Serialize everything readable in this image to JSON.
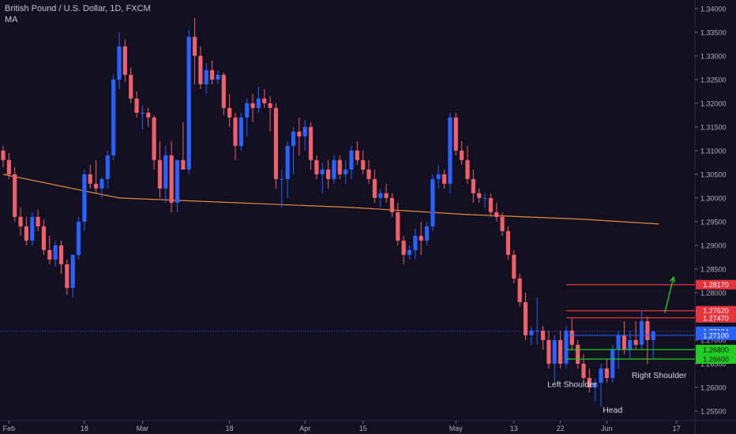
{
  "chart_data": {
    "type": "candlestick",
    "title": "British Pound / U.S. Dollar, 1D, FXCM",
    "indicator_label": "MA",
    "ylim": [
      1.253,
      1.3418
    ],
    "y_ticks": [
      "1.34000",
      "1.33500",
      "1.33000",
      "1.32500",
      "1.32000",
      "1.31500",
      "1.31000",
      "1.30500",
      "1.30000",
      "1.29500",
      "1.29000",
      "1.28500",
      "1.28000",
      "1.27500",
      "1.27000",
      "1.26500",
      "1.26000",
      "1.25500"
    ],
    "x_ticks": [
      {
        "label": "Feb",
        "bar": 1
      },
      {
        "label": "18",
        "bar": 14
      },
      {
        "label": "Mar",
        "bar": 24
      },
      {
        "label": "18",
        "bar": 39
      },
      {
        "label": "Apr",
        "bar": 52
      },
      {
        "label": "15",
        "bar": 62
      },
      {
        "label": "May",
        "bar": 78
      },
      {
        "label": "13",
        "bar": 88
      },
      {
        "label": "22",
        "bar": 96
      },
      {
        "label": "Jun",
        "bar": 104
      },
      {
        "label": "17",
        "bar": 116
      }
    ],
    "colors": {
      "up": "#2962ff",
      "down": "#f0606a",
      "ma": "#e58a3f",
      "resistance": "#e5343b",
      "support": "#22cc22",
      "arrow": "#22cc22",
      "grid_text": "#b0b0bc",
      "current_price": "#2962ff"
    },
    "candles": [
      [
        1.31,
        1.311,
        1.3065,
        1.308
      ],
      [
        1.308,
        1.3095,
        1.304,
        1.305
      ],
      [
        1.305,
        1.3065,
        1.295,
        1.296
      ],
      [
        1.296,
        1.298,
        1.292,
        1.294
      ],
      [
        1.294,
        1.296,
        1.29,
        1.291
      ],
      [
        1.291,
        1.297,
        1.29,
        1.296
      ],
      [
        1.296,
        1.2975,
        1.293,
        1.294
      ],
      [
        1.294,
        1.2955,
        1.288,
        1.289
      ],
      [
        1.289,
        1.292,
        1.286,
        1.287
      ],
      [
        1.287,
        1.291,
        1.2855,
        1.29
      ],
      [
        1.29,
        1.291,
        1.284,
        1.286
      ],
      [
        1.286,
        1.287,
        1.2795,
        1.281
      ],
      [
        1.281,
        1.288,
        1.279,
        1.288
      ],
      [
        1.288,
        1.296,
        1.287,
        1.295
      ],
      [
        1.295,
        1.306,
        1.293,
        1.305
      ],
      [
        1.305,
        1.307,
        1.302,
        1.303
      ],
      [
        1.303,
        1.308,
        1.301,
        1.302
      ],
      [
        1.302,
        1.3045,
        1.3,
        1.304
      ],
      [
        1.304,
        1.31,
        1.302,
        1.309
      ],
      [
        1.309,
        1.326,
        1.308,
        1.325
      ],
      [
        1.325,
        1.335,
        1.323,
        1.332
      ],
      [
        1.332,
        1.3335,
        1.3245,
        1.326
      ],
      [
        1.326,
        1.3275,
        1.32,
        1.321
      ],
      [
        1.321,
        1.3225,
        1.317,
        1.318
      ],
      [
        1.318,
        1.3195,
        1.3145,
        1.318
      ],
      [
        1.318,
        1.319,
        1.315,
        1.317
      ],
      [
        1.317,
        1.3175,
        1.306,
        1.308
      ],
      [
        1.308,
        1.312,
        1.3,
        1.302
      ],
      [
        1.302,
        1.311,
        1.299,
        1.309
      ],
      [
        1.309,
        1.312,
        1.297,
        1.299
      ],
      [
        1.299,
        1.308,
        1.297,
        1.308
      ],
      [
        1.308,
        1.316,
        1.306,
        1.306
      ],
      [
        1.306,
        1.3355,
        1.305,
        1.334
      ],
      [
        1.334,
        1.338,
        1.324,
        1.33
      ],
      [
        1.33,
        1.332,
        1.323,
        1.324
      ],
      [
        1.324,
        1.3285,
        1.322,
        1.327
      ],
      [
        1.327,
        1.329,
        1.324,
        1.325
      ],
      [
        1.325,
        1.327,
        1.324,
        1.326
      ],
      [
        1.326,
        1.3265,
        1.3175,
        1.319
      ],
      [
        1.319,
        1.322,
        1.315,
        1.317
      ],
      [
        1.317,
        1.318,
        1.308,
        1.311
      ],
      [
        1.311,
        1.318,
        1.31,
        1.317
      ],
      [
        1.317,
        1.321,
        1.313,
        1.32
      ],
      [
        1.32,
        1.322,
        1.316,
        1.319
      ],
      [
        1.319,
        1.3235,
        1.318,
        1.321
      ],
      [
        1.321,
        1.323,
        1.319,
        1.32
      ],
      [
        1.32,
        1.3215,
        1.314,
        1.319
      ],
      [
        1.319,
        1.32,
        1.302,
        1.304
      ],
      [
        1.304,
        1.306,
        1.298,
        1.304
      ],
      [
        1.304,
        1.312,
        1.3,
        1.311
      ],
      [
        1.311,
        1.315,
        1.305,
        1.314
      ],
      [
        1.314,
        1.317,
        1.309,
        1.313
      ],
      [
        1.313,
        1.3165,
        1.31,
        1.315
      ],
      [
        1.315,
        1.316,
        1.306,
        1.308
      ],
      [
        1.308,
        1.309,
        1.304,
        1.305
      ],
      [
        1.305,
        1.3075,
        1.301,
        1.306
      ],
      [
        1.306,
        1.308,
        1.302,
        1.304
      ],
      [
        1.304,
        1.309,
        1.303,
        1.308
      ],
      [
        1.308,
        1.309,
        1.304,
        1.305
      ],
      [
        1.305,
        1.308,
        1.303,
        1.306
      ],
      [
        1.306,
        1.311,
        1.304,
        1.31
      ],
      [
        1.31,
        1.312,
        1.307,
        1.308
      ],
      [
        1.308,
        1.31,
        1.305,
        1.306
      ],
      [
        1.306,
        1.308,
        1.303,
        1.304
      ],
      [
        1.304,
        1.306,
        1.299,
        1.3
      ],
      [
        1.3,
        1.302,
        1.298,
        1.301
      ],
      [
        1.301,
        1.303,
        1.299,
        1.3
      ],
      [
        1.3,
        1.301,
        1.296,
        1.297
      ],
      [
        1.297,
        1.299,
        1.29,
        1.291
      ],
      [
        1.291,
        1.292,
        1.286,
        1.288
      ],
      [
        1.288,
        1.29,
        1.287,
        1.289
      ],
      [
        1.289,
        1.2935,
        1.287,
        1.292
      ],
      [
        1.292,
        1.295,
        1.288,
        1.291
      ],
      [
        1.291,
        1.295,
        1.29,
        1.294
      ],
      [
        1.294,
        1.305,
        1.293,
        1.304
      ],
      [
        1.304,
        1.307,
        1.302,
        1.305
      ],
      [
        1.305,
        1.306,
        1.302,
        1.303
      ],
      [
        1.303,
        1.318,
        1.301,
        1.317
      ],
      [
        1.317,
        1.318,
        1.309,
        1.31
      ],
      [
        1.31,
        1.312,
        1.307,
        1.308
      ],
      [
        1.308,
        1.311,
        1.303,
        1.304
      ],
      [
        1.304,
        1.306,
        1.299,
        1.301
      ],
      [
        1.301,
        1.302,
        1.299,
        1.3
      ],
      [
        1.3,
        1.301,
        1.298,
        1.3
      ],
      [
        1.3,
        1.301,
        1.296,
        1.297
      ],
      [
        1.297,
        1.299,
        1.295,
        1.296
      ],
      [
        1.296,
        1.297,
        1.292,
        1.293
      ],
      [
        1.293,
        1.294,
        1.287,
        1.288
      ],
      [
        1.288,
        1.289,
        1.282,
        1.283
      ],
      [
        1.283,
        1.284,
        1.277,
        1.278
      ],
      [
        1.278,
        1.28,
        1.27,
        1.271
      ],
      [
        1.271,
        1.273,
        1.269,
        1.272
      ],
      [
        1.272,
        1.279,
        1.269,
        1.272
      ],
      [
        1.272,
        1.273,
        1.268,
        1.27
      ],
      [
        1.27,
        1.272,
        1.264,
        1.265
      ],
      [
        1.265,
        1.271,
        1.261,
        1.27
      ],
      [
        1.27,
        1.272,
        1.264,
        1.265
      ],
      [
        1.265,
        1.273,
        1.264,
        1.272
      ],
      [
        1.272,
        1.2745,
        1.268,
        1.269
      ],
      [
        1.269,
        1.27,
        1.264,
        1.265
      ],
      [
        1.265,
        1.267,
        1.261,
        1.262
      ],
      [
        1.262,
        1.264,
        1.259,
        1.26
      ],
      [
        1.26,
        1.262,
        1.257,
        1.261
      ],
      [
        1.261,
        1.265,
        1.256,
        1.264
      ],
      [
        1.264,
        1.266,
        1.261,
        1.262
      ],
      [
        1.262,
        1.269,
        1.261,
        1.268
      ],
      [
        1.268,
        1.272,
        1.264,
        1.271
      ],
      [
        1.271,
        1.274,
        1.267,
        1.268
      ],
      [
        1.268,
        1.272,
        1.266,
        1.27
      ],
      [
        1.27,
        1.274,
        1.268,
        1.269
      ],
      [
        1.269,
        1.2762,
        1.268,
        1.274
      ],
      [
        1.274,
        1.275,
        1.265,
        1.27
      ],
      [
        1.27,
        1.272,
        1.266,
        1.2718
      ]
    ],
    "ma_points": [
      [
        0,
        1.305
      ],
      [
        20,
        1.3
      ],
      [
        40,
        1.299
      ],
      [
        60,
        1.298
      ],
      [
        80,
        1.2965
      ],
      [
        100,
        1.2955
      ],
      [
        113,
        1.2945
      ]
    ],
    "levels": [
      {
        "price": 1.2817,
        "label": "1.28170",
        "kind": "resistance"
      },
      {
        "price": 1.2762,
        "label": "1.27620",
        "kind": "resistance"
      },
      {
        "price": 1.2747,
        "label": "1.27470",
        "kind": "resistance"
      },
      {
        "price": 1.268,
        "label": "1.26800",
        "kind": "support"
      },
      {
        "price": 1.266,
        "label": "1.26600",
        "kind": "support"
      }
    ],
    "level_start_bar": 97,
    "current_price": {
      "price": 1.27184,
      "label": "1.27184"
    },
    "price_line": {
      "price": 1.271,
      "label": "1.27100"
    },
    "annotations": [
      {
        "text": "Left Shoulder",
        "bar": 98,
        "price": 1.2601
      },
      {
        "text": "Head",
        "bar": 105,
        "price": 1.2547
      },
      {
        "text": "Right Shoulder",
        "bar": 113,
        "price": 1.262
      }
    ],
    "arrow": {
      "from_bar": 114,
      "from_price": 1.2758,
      "to_bar": 115.5,
      "to_price": 1.2833
    }
  }
}
